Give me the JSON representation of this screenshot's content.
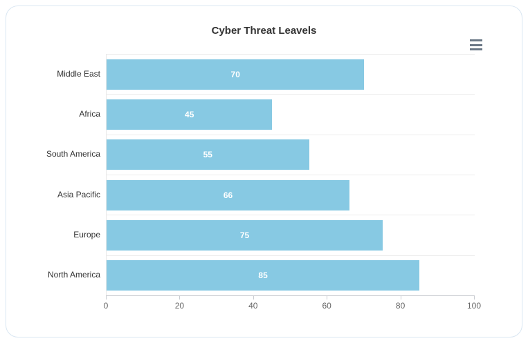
{
  "chart": {
    "title": "Cyber Threat Leavels",
    "menu_icon": "hamburger-menu-icon"
  },
  "chart_data": {
    "type": "bar",
    "orientation": "horizontal",
    "title": "Cyber Threat Leavels",
    "categories": [
      "Middle East",
      "Africa",
      "South America",
      "Asia Pacific",
      "Europe",
      "North America"
    ],
    "values": [
      70,
      45,
      55,
      66,
      75,
      85
    ],
    "xlabel": "",
    "ylabel": "",
    "xlim": [
      0,
      100
    ],
    "xticks": [
      0,
      20,
      40,
      60,
      80,
      100
    ],
    "grid": "horizontal band lines, light gray",
    "legend": "none",
    "value_labels": "white bold, centered inside bars"
  },
  "colors": {
    "bar_fill": "#87C9E3",
    "value_label": "#FFFFFF",
    "gridline": "#ECECEC",
    "axis_line": "#C9CCD1",
    "tick_label": "#666666",
    "category_label": "#333333",
    "title": "#333333",
    "card_border": "#D9E6F2",
    "menu_icon": "#6B7886",
    "background": "#FFFFFF"
  }
}
